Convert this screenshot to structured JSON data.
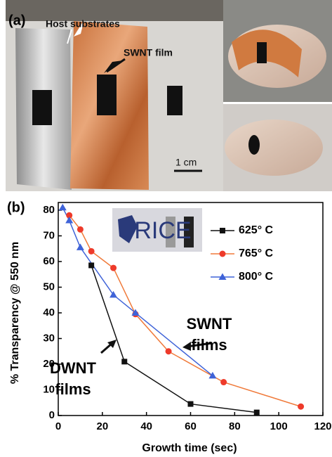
{
  "panel_a": {
    "label": "(a)",
    "annotations": [
      "Host substrates",
      "SWNT film"
    ],
    "scale_bar": "1 cm"
  },
  "chart_data": {
    "type": "line",
    "panel_label": "(b)",
    "x_label": "Growth time (sec)",
    "y_label": "% Transparency @ 550 nm",
    "xlim": [
      0,
      120
    ],
    "ylim": [
      0,
      83
    ],
    "xticks": [
      0,
      20,
      40,
      60,
      80,
      100,
      120
    ],
    "yticks": [
      0,
      10,
      20,
      30,
      40,
      50,
      60,
      70,
      80
    ],
    "inset_label": "RICE",
    "annotations": [
      [
        "SWNT",
        "films"
      ],
      [
        "DWNT",
        "films"
      ]
    ],
    "series": [
      {
        "name": "625° C",
        "color": "#111111",
        "marker_color": "#111111",
        "marker": "square",
        "x": [
          15,
          30,
          60,
          90
        ],
        "values": [
          58.5,
          21,
          4.5,
          1.2
        ]
      },
      {
        "name": "765° C",
        "color": "#f07a3a",
        "marker_color": "#ee3a2a",
        "marker": "circle",
        "x": [
          5,
          10,
          15,
          25,
          35,
          50,
          75,
          110
        ],
        "values": [
          78,
          72.5,
          64,
          57.5,
          39.5,
          25,
          13,
          3.5
        ]
      },
      {
        "name": "800° C",
        "color": "#3f63d8",
        "marker_color": "#3f63d8",
        "marker": "triangle",
        "x": [
          2,
          5,
          10,
          25,
          35,
          70
        ],
        "values": [
          81,
          76,
          65.5,
          47,
          40,
          15.5
        ]
      }
    ]
  }
}
